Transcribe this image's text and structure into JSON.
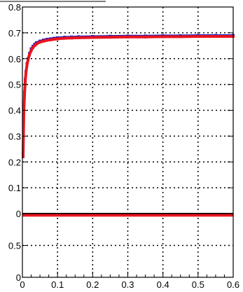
{
  "chart_data": [
    {
      "type": "scatter",
      "panel": "upper",
      "title": "",
      "xlabel": "",
      "ylabel": "",
      "xlim": [
        0,
        0.6
      ],
      "ylim": [
        0,
        0.8
      ],
      "grid": true,
      "grid_style": "dotted",
      "x_tick_labels": [
        "0",
        "0.1",
        "0.2",
        "0.3",
        "0.4",
        "0.5",
        "0.6"
      ],
      "y_tick_labels": [
        "0",
        "0.1",
        "0.2",
        "0.3",
        "0.4",
        "0.5",
        "0.6",
        "0.7",
        "0.8"
      ],
      "series": [
        {
          "color": "#1515c8",
          "x": [
            0.002,
            0.004,
            0.006,
            0.008,
            0.01,
            0.013,
            0.016,
            0.02,
            0.025,
            0.03,
            0.035,
            0.04,
            0.05,
            0.06,
            0.07,
            0.08,
            0.09,
            0.1,
            0.12,
            0.14,
            0.16,
            0.2,
            0.25,
            0.3,
            0.35,
            0.4,
            0.45,
            0.5,
            0.55,
            0.6
          ],
          "y": [
            0.23,
            0.4,
            0.47,
            0.52,
            0.55,
            0.58,
            0.6,
            0.62,
            0.638,
            0.648,
            0.656,
            0.662,
            0.668,
            0.672,
            0.675,
            0.677,
            0.679,
            0.681,
            0.683,
            0.684,
            0.685,
            0.686,
            0.687,
            0.688,
            0.688,
            0.689,
            0.689,
            0.69,
            0.69,
            0.69
          ]
        },
        {
          "color": "#e8141e",
          "x": [
            0.002,
            0.004,
            0.006,
            0.008,
            0.01,
            0.013,
            0.016,
            0.02,
            0.025,
            0.03,
            0.035,
            0.04,
            0.05,
            0.06,
            0.07,
            0.08,
            0.09,
            0.1,
            0.12,
            0.14,
            0.16,
            0.2,
            0.25,
            0.3,
            0.35,
            0.4,
            0.45,
            0.5,
            0.55,
            0.6
          ],
          "y": [
            0.22,
            0.39,
            0.46,
            0.51,
            0.545,
            0.575,
            0.595,
            0.615,
            0.632,
            0.643,
            0.651,
            0.657,
            0.664,
            0.668,
            0.671,
            0.673,
            0.675,
            0.677,
            0.679,
            0.68,
            0.681,
            0.682,
            0.683,
            0.684,
            0.684,
            0.685,
            0.685,
            0.686,
            0.686,
            0.686
          ]
        }
      ]
    },
    {
      "type": "line",
      "panel": "lower",
      "title": "",
      "xlabel": "",
      "ylabel": "",
      "xlim": [
        0,
        0.6
      ],
      "ylim": [
        0,
        1
      ],
      "grid": true,
      "grid_style": "dotted",
      "x_tick_labels": [
        "0",
        "0.1",
        "0.2",
        "0.3",
        "0.4",
        "0.5",
        "0.6"
      ],
      "y_tick_labels": [
        "0",
        "0.5",
        "1"
      ],
      "series": [
        {
          "color": "#000000",
          "x": [
            0,
            0.6
          ],
          "y": [
            1,
            1
          ]
        },
        {
          "color": "#e8141e",
          "x": [
            0,
            0.6
          ],
          "y": [
            0.98,
            0.98
          ]
        }
      ]
    }
  ]
}
